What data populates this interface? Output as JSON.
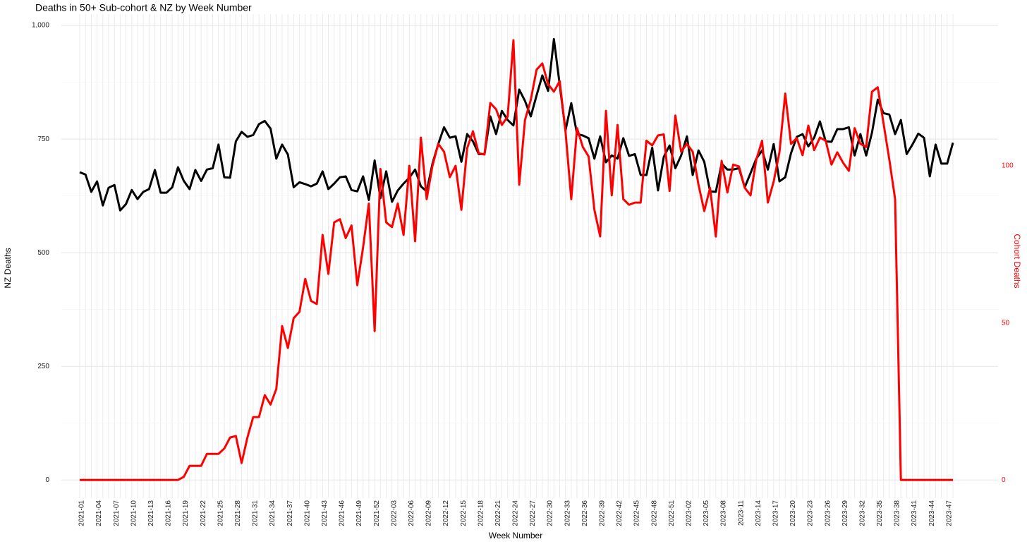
{
  "chart_data": {
    "type": "line",
    "title": "Deaths in 50+ Sub-cohort & NZ by Week Number",
    "x_label": "Week Number",
    "y_label": "NZ Deaths",
    "y2_label": "Cohort Deaths",
    "y2_color": "#ff0000",
    "grid": true,
    "categories": [
      "2021-01",
      null,
      null,
      "2021-04",
      null,
      null,
      "2021-07",
      null,
      null,
      "2021-10",
      null,
      null,
      "2021-13",
      null,
      null,
      "2021-16",
      null,
      null,
      "2021-19",
      null,
      null,
      "2021-22",
      null,
      null,
      "2021-25",
      null,
      null,
      "2021-28",
      null,
      null,
      "2021-31",
      null,
      null,
      "2021-34",
      null,
      null,
      "2021-37",
      null,
      null,
      "2021-40",
      null,
      null,
      "2021-43",
      null,
      null,
      "2021-46",
      null,
      null,
      "2021-49",
      null,
      null,
      "2021-52",
      null,
      null,
      "2022-03",
      null,
      null,
      "2022-06",
      null,
      null,
      "2022-09",
      null,
      null,
      "2022-12",
      null,
      null,
      "2022-15",
      null,
      null,
      "2022-18",
      null,
      null,
      "2022-21",
      null,
      null,
      "2022-24",
      null,
      null,
      "2022-27",
      null,
      null,
      "2022-30",
      null,
      null,
      "2022-33",
      null,
      null,
      "2022-36",
      null,
      null,
      "2022-39",
      null,
      null,
      "2022-42",
      null,
      null,
      "2022-45",
      null,
      null,
      "2022-48",
      null,
      null,
      "2022-51",
      null,
      null,
      "2023-02",
      null,
      null,
      "2023-05",
      null,
      null,
      "2023-08",
      null,
      null,
      "2023-11",
      null,
      null,
      "2023-14",
      null,
      null,
      "2023-17",
      null,
      null,
      "2023-20",
      null,
      null,
      "2023-23",
      null,
      null,
      "2023-26",
      null,
      null,
      "2023-29",
      null,
      null,
      "2023-32",
      null,
      null,
      "2023-35",
      null,
      null,
      "2023-38",
      null,
      null,
      "2023-41",
      null,
      null,
      "2023-44",
      null,
      null,
      "2023-47",
      null
    ],
    "series": [
      {
        "color": "#000000",
        "values": [
          677,
          672,
          634,
          657,
          604,
          643,
          649,
          593,
          607,
          638,
          618,
          634,
          640,
          682,
          632,
          632,
          644,
          688,
          658,
          640,
          682,
          658,
          683,
          686,
          738,
          666,
          665,
          745,
          766,
          755,
          759,
          783,
          790,
          773,
          707,
          738,
          716,
          644,
          655,
          651,
          646,
          652,
          679,
          640,
          652,
          666,
          668,
          638,
          635,
          668,
          616,
          703,
          620,
          679,
          612,
          637,
          652,
          665,
          683,
          646,
          635,
          696,
          739,
          776,
          753,
          756,
          700,
          761,
          745,
          717,
          717,
          800,
          761,
          812,
          792,
          780,
          859,
          834,
          800,
          846,
          890,
          856,
          970,
          870,
          769,
          829,
          761,
          758,
          752,
          707,
          756,
          699,
          714,
          707,
          752,
          713,
          717,
          671,
          671,
          731,
          637,
          711,
          736,
          686,
          714,
          756,
          671,
          725,
          700,
          635,
          634,
          696,
          683,
          683,
          686,
          644,
          675,
          707,
          725,
          683,
          739,
          657,
          666,
          719,
          755,
          761,
          734,
          753,
          789,
          745,
          744,
          772,
          772,
          776,
          714,
          761,
          714,
          764,
          837,
          807,
          804,
          761,
          792,
          717,
          738,
          762,
          753,
          668,
          738,
          696,
          696,
          742
        ]
      },
      {
        "color": "#ff0000",
        "axis": "y2",
        "values": [
          0,
          0,
          0,
          0,
          0,
          0,
          0,
          0,
          0,
          0,
          0,
          0,
          0,
          0,
          0,
          0,
          0,
          0,
          1,
          4.5,
          4.5,
          4.5,
          8.3,
          8.3,
          8.3,
          10,
          13.5,
          14,
          5.4,
          13.5,
          20,
          20,
          27,
          24,
          29,
          49,
          42,
          51.5,
          53.5,
          64,
          57,
          56,
          78,
          65.6,
          82,
          83,
          77,
          81,
          62,
          74,
          88,
          47.4,
          99,
          82,
          80.5,
          88,
          78,
          100,
          76,
          109,
          89.4,
          100,
          107,
          104.5,
          96.4,
          100,
          86,
          105.6,
          111,
          104,
          103.6,
          120,
          118,
          113,
          115.7,
          140,
          94,
          114.6,
          121,
          130.6,
          132.6,
          126,
          123.6,
          127,
          111,
          89.4,
          112,
          106,
          103,
          86,
          77.5,
          117.5,
          90.6,
          113,
          89.4,
          87.6,
          88.3,
          88.3,
          108,
          106.5,
          109.7,
          110,
          92,
          116,
          104.5,
          107,
          104.5,
          94,
          85.6,
          93,
          77.5,
          101.6,
          91.5,
          100.4,
          99.8,
          93,
          90.6,
          102,
          108,
          88.3,
          95,
          104.3,
          123,
          107,
          108.8,
          103.4,
          112.8,
          105,
          109,
          108,
          100.4,
          104.3,
          101,
          98.4,
          112,
          107,
          106,
          123.6,
          125,
          113.5,
          102,
          89.4,
          0,
          0,
          0,
          0,
          0,
          0,
          0,
          0,
          0,
          0
        ]
      }
    ],
    "ylim": [
      -40,
      1025
    ],
    "yticks": [
      0,
      250,
      500,
      750,
      {
        "value": 1000,
        "label": "1,000"
      }
    ],
    "y2lim": [
      -5.79,
      148.3
    ],
    "y2ticks": [
      0,
      50,
      100
    ]
  }
}
